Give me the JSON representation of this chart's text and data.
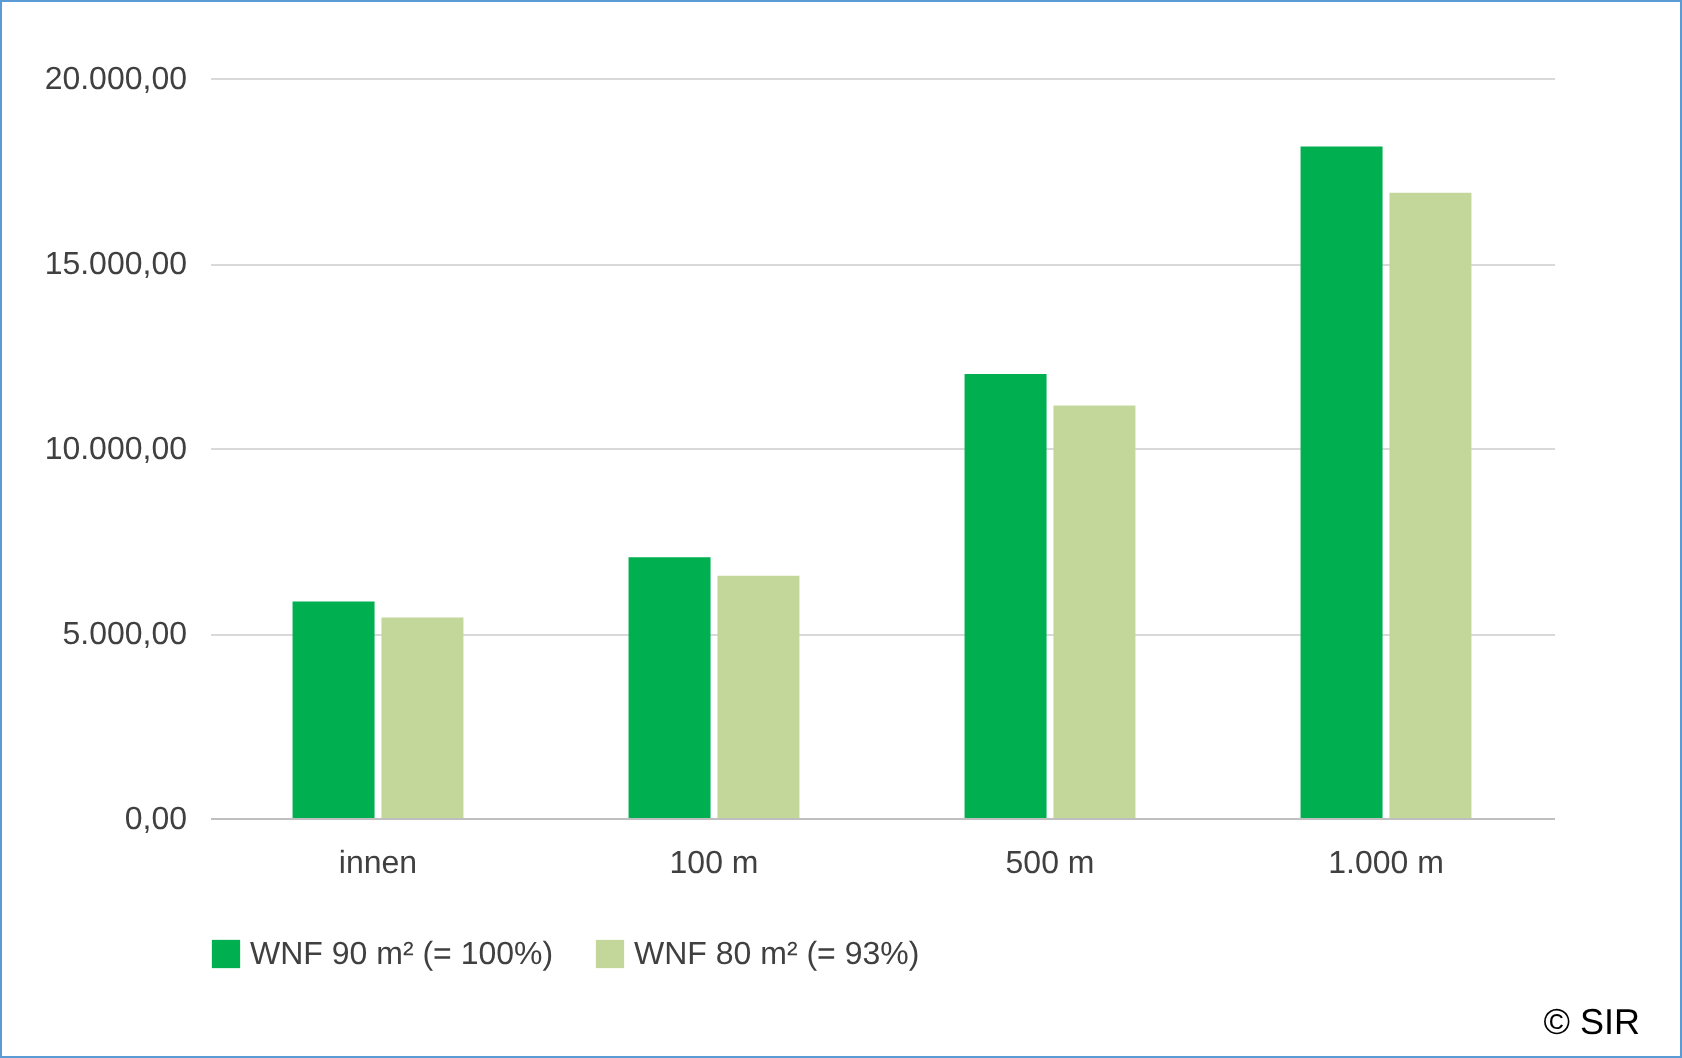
{
  "chart_data": {
    "type": "bar",
    "categories": [
      "innen",
      "100 m",
      "500 m",
      "1.000 m"
    ],
    "series": [
      {
        "name": "WNF 90 m² (= 100%)",
        "color": "#00b050",
        "values": [
          5850,
          7050,
          12000,
          18150
        ]
      },
      {
        "name": "WNF 80 m² (= 93%)",
        "color": "#c4d79b",
        "values": [
          5420,
          6550,
          11150,
          16900
        ]
      }
    ],
    "ylim": [
      0,
      20000
    ],
    "yticks": [
      {
        "value": 0,
        "label": "0,00"
      },
      {
        "value": 5000,
        "label": "5.000,00"
      },
      {
        "value": 10000,
        "label": "10.000,00"
      },
      {
        "value": 15000,
        "label": "15.000,00"
      },
      {
        "value": 20000,
        "label": "20.000,00"
      }
    ],
    "grid": "y",
    "legend": "bottom",
    "annotations": [
      "© SIR"
    ]
  }
}
